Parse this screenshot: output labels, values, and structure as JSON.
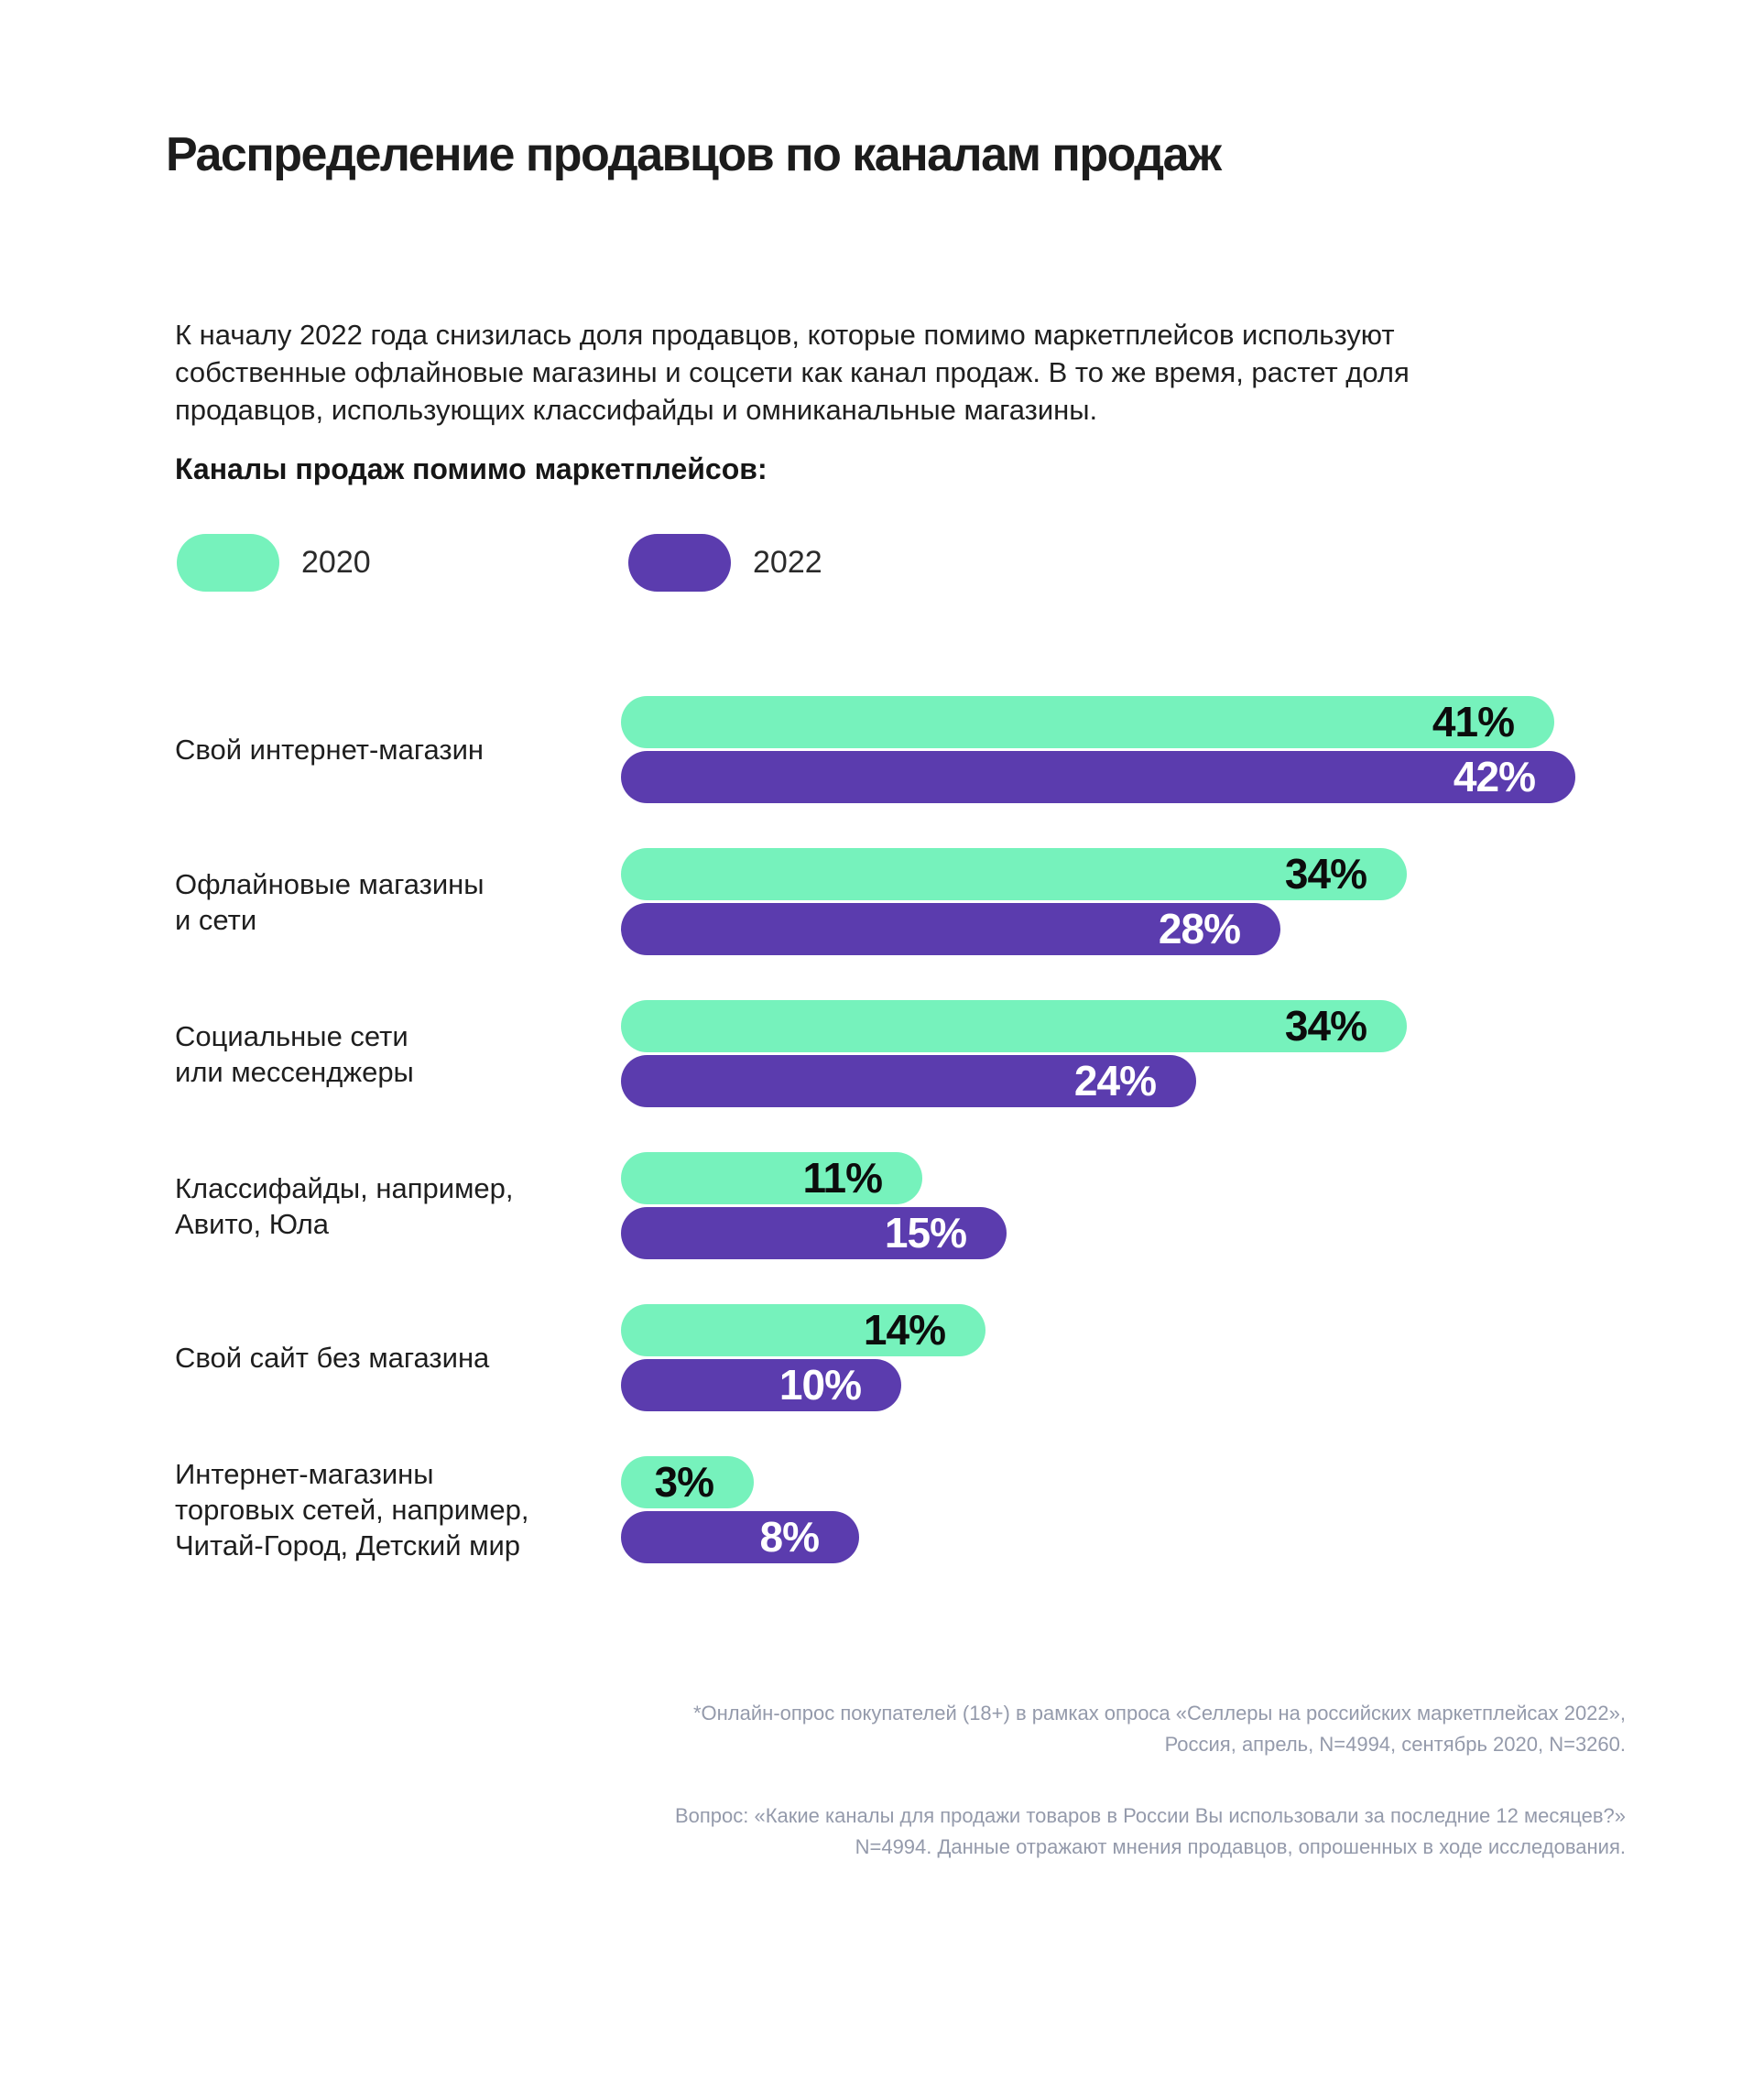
{
  "header": {
    "title": "Распределение продавцов по каналам продаж",
    "intro": "К началу 2022 года снизилась доля продавцов, которые помимо маркетплейсов используют\nсобственные офлайновые магазины и соцсети как канал продаж. В то же время, растет доля\nпродавцов, использующих классифайды и омниканальные магазины."
  },
  "chart": {
    "section_label": "Каналы продаж помимо маркетплейсов:",
    "legend": [
      {
        "label": "2020",
        "color": "#76F2BC"
      },
      {
        "label": "2022",
        "color": "#5B3CAE"
      }
    ]
  },
  "chart_data": {
    "type": "bar",
    "orientation": "horizontal",
    "title": "Каналы продаж помимо маркетплейсов",
    "value_suffix": "%",
    "xlim": [
      0,
      45
    ],
    "grid": false,
    "legend_position": "top-left",
    "categories": [
      "Свой интернет-магазин",
      "Офлайновые магазины\nи сети",
      "Социальные сети\nили мессенджеры",
      "Классифайды, например,\nАвито, Юла",
      "Свой сайт без магазина",
      "Интернет-магазины\nторговых сетей, например,\nЧитай-Город, Детский мир"
    ],
    "series": [
      {
        "name": "2020",
        "color": "#76F2BC",
        "label_color": "#0c0c0c",
        "values": [
          41,
          34,
          34,
          11,
          14,
          3
        ]
      },
      {
        "name": "2022",
        "color": "#5B3CAE",
        "label_color": "#ffffff",
        "values": [
          42,
          28,
          24,
          15,
          10,
          8
        ]
      }
    ]
  },
  "footnotes": [
    "*Онлайн-опрос покупателей (18+) в рамках опроса «Селлеры на российских маркетплейсах 2022»,\nРоссия, апрель, N=4994, сентябрь 2020, N=3260.",
    "Вопрос: «Какие каналы для продажи товаров в России Вы использовали за последние 12 месяцев?»\nN=4994. Данные отражают мнения продавцов, опрошенных в ходе исследования."
  ]
}
